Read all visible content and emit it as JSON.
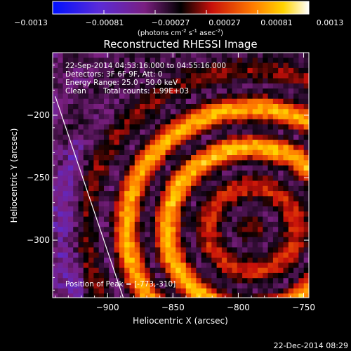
{
  "colorbar": {
    "ticks": [
      "-0.0013",
      "-0.00081",
      "-0.00027",
      "0.00027",
      "0.00081",
      "0.0013"
    ],
    "unit_main": "(photons cm",
    "unit_sup1": "-2",
    "unit_mid": " s",
    "unit_sup2": "-1",
    "unit_end": " asec",
    "unit_sup3": "-2",
    "unit_close": ")"
  },
  "image": {
    "title": "Reconstructed RHESSI Image",
    "time_range": "22-Sep-2014 04:53:16.000 to 04:55:16.000",
    "detectors": "Detectors: 3F 6F 9F, Att: 0",
    "energy": "Energy Range: 25.0 - 50.0 keV",
    "clean": "Clean",
    "counts": "Total counts: 1.99E+03",
    "peak": "Position of Peak = [-773,-310]"
  },
  "footer": {
    "timestamp": "22-Dec-2014 08:29"
  },
  "chart_data": {
    "type": "heatmap",
    "title": "Reconstructed RHESSI Image",
    "xlabel": "Heliocentric X (arcsec)",
    "ylabel": "Heliocentric Y (arcsec)",
    "xlim": [
      -942,
      -746
    ],
    "ylim": [
      -346,
      -150
    ],
    "xticks": [
      -900,
      -850,
      -800,
      -750
    ],
    "yticks": [
      -300,
      -250,
      -200
    ],
    "colorbar_range": [
      -0.0013,
      0.0013
    ],
    "colormap": "blue-purple-red-yellow-white",
    "limb_line": {
      "x1": -940,
      "y1": -185,
      "x2": -888,
      "y2": -346
    },
    "peak_position": [
      -773,
      -310
    ],
    "grid": false
  }
}
